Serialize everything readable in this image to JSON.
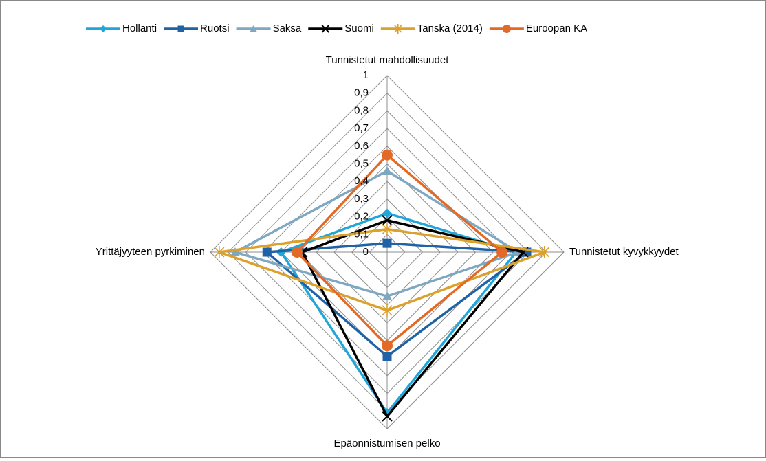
{
  "chart_data": {
    "type": "radar",
    "categories": [
      "Tunnistetut mahdollisuudet",
      "Tunnistetut kyvykkyydet",
      "Epäonnistumisen pelko",
      "Yrittäjyyteen pyrkiminen"
    ],
    "ylim": [
      0,
      1
    ],
    "yticks": [
      0,
      {
        "value": 0.1,
        "label": "0,1"
      },
      {
        "value": 0.2,
        "label": "0,2"
      },
      {
        "value": 0.3,
        "label": "0,3"
      },
      {
        "value": 0.4,
        "label": "0,4"
      },
      {
        "value": 0.5,
        "label": "0,5"
      },
      {
        "value": 0.6,
        "label": "0,6"
      },
      {
        "value": 0.7,
        "label": "0,7"
      },
      {
        "value": 0.8,
        "label": "0,8"
      },
      {
        "value": 0.9,
        "label": "0,9"
      },
      1
    ],
    "grid": true,
    "legend": "top",
    "series": [
      {
        "name": "Hollanti",
        "color": "#21a6d9",
        "marker": "diamond",
        "values": [
          0.22,
          0.73,
          0.91,
          0.6
        ]
      },
      {
        "name": "Ruotsi",
        "color": "#1f62a5",
        "marker": "square",
        "values": [
          0.05,
          0.79,
          0.59,
          0.68
        ]
      },
      {
        "name": "Saksa",
        "color": "#7ea8c1",
        "marker": "triangle",
        "values": [
          0.46,
          0.74,
          0.25,
          0.86
        ]
      },
      {
        "name": "Suomi",
        "color": "#000000",
        "marker": "x",
        "values": [
          0.18,
          0.77,
          0.93,
          0.48
        ]
      },
      {
        "name": "Tanska (2014)",
        "color": "#dca12b",
        "marker": "asterisk",
        "values": [
          0.13,
          0.89,
          0.33,
          0.95
        ]
      },
      {
        "name": "Euroopan KA",
        "color": "#e36a26",
        "marker": "circle",
        "values": [
          0.55,
          0.65,
          0.53,
          0.51
        ]
      }
    ]
  }
}
